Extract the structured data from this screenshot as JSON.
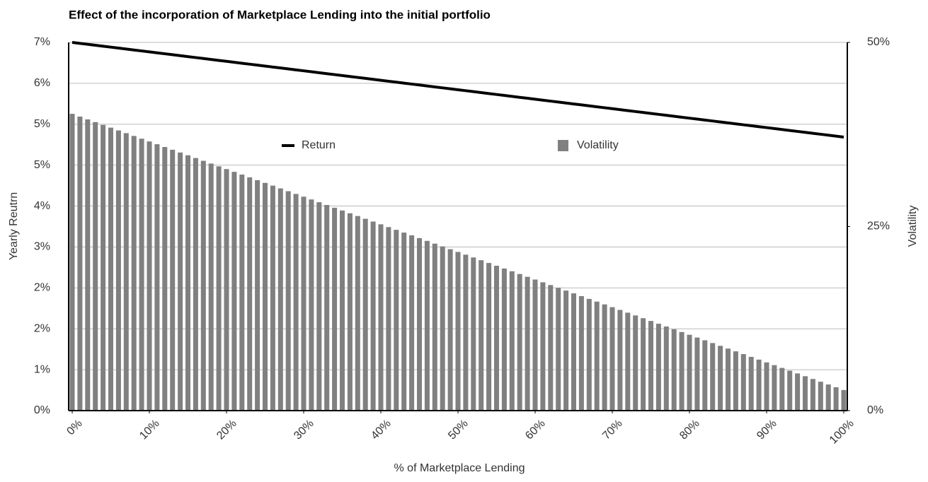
{
  "chart_data": {
    "type": "bar_line",
    "title": "Effect of the incorporation of Marketplace Lending into the initial portfolio",
    "x_label": "% of Marketplace Lending",
    "y_label": "Yearly Reutrn",
    "y2_label": "Volatility",
    "x": [
      0,
      1,
      2,
      3,
      4,
      5,
      6,
      7,
      8,
      9,
      10,
      11,
      12,
      13,
      14,
      15,
      16,
      17,
      18,
      19,
      20,
      21,
      22,
      23,
      24,
      25,
      26,
      27,
      28,
      29,
      30,
      31,
      32,
      33,
      34,
      35,
      36,
      37,
      38,
      39,
      40,
      41,
      42,
      43,
      44,
      45,
      46,
      47,
      48,
      49,
      50,
      51,
      52,
      53,
      54,
      55,
      56,
      57,
      58,
      59,
      60,
      61,
      62,
      63,
      64,
      65,
      66,
      67,
      68,
      69,
      70,
      71,
      72,
      73,
      74,
      75,
      76,
      77,
      78,
      79,
      80,
      81,
      82,
      83,
      84,
      85,
      86,
      87,
      88,
      89,
      90,
      91,
      92,
      93,
      94,
      95,
      96,
      97,
      98,
      99,
      100
    ],
    "series": [
      {
        "name": "Return",
        "type": "line",
        "color": "#000000",
        "values": [
          7,
          6.982,
          6.964,
          6.946,
          6.928,
          6.91,
          6.892,
          6.874,
          6.856,
          6.838,
          6.82,
          6.802,
          6.784,
          6.766,
          6.748,
          6.73,
          6.712,
          6.694,
          6.676,
          6.658,
          6.64,
          6.622,
          6.604,
          6.586,
          6.568,
          6.55,
          6.532,
          6.514,
          6.496,
          6.478,
          6.46,
          6.442,
          6.424,
          6.406,
          6.388,
          6.37,
          6.352,
          6.334,
          6.316,
          6.298,
          6.28,
          6.262,
          6.244,
          6.226,
          6.208,
          6.19,
          6.172,
          6.154,
          6.136,
          6.118,
          6.1,
          6.082,
          6.064,
          6.046,
          6.028,
          6.01,
          5.992,
          5.974,
          5.956,
          5.938,
          5.92,
          5.902,
          5.884,
          5.866,
          5.848,
          5.83,
          5.812,
          5.794,
          5.776,
          5.758,
          5.74,
          5.722,
          5.704,
          5.686,
          5.668,
          5.65,
          5.632,
          5.614,
          5.596,
          5.578,
          5.56,
          5.542,
          5.524,
          5.506,
          5.488,
          5.47,
          5.452,
          5.434,
          5.416,
          5.398,
          5.38,
          5.362,
          5.344,
          5.326,
          5.308,
          5.29,
          5.272,
          5.254,
          5.236,
          5.218,
          5.2
        ]
      },
      {
        "name": "Volatility",
        "type": "bar",
        "axis": "y2",
        "color": "#808080",
        "values": [
          40.3,
          39.925,
          39.55,
          39.175,
          38.8,
          38.425,
          38.05,
          37.675,
          37.3,
          36.925,
          36.55,
          36.175,
          35.8,
          35.425,
          35.05,
          34.675,
          34.3,
          33.925,
          33.55,
          33.175,
          32.8,
          32.425,
          32.05,
          31.675,
          31.3,
          30.925,
          30.55,
          30.175,
          29.8,
          29.425,
          29.05,
          28.675,
          28.3,
          27.925,
          27.55,
          27.175,
          26.8,
          26.425,
          26.05,
          25.675,
          25.3,
          24.925,
          24.55,
          24.175,
          23.8,
          23.425,
          23.05,
          22.675,
          22.3,
          21.925,
          21.55,
          21.175,
          20.8,
          20.425,
          20.05,
          19.675,
          19.3,
          18.925,
          18.55,
          18.175,
          17.8,
          17.425,
          17.05,
          16.675,
          16.3,
          15.925,
          15.55,
          15.175,
          14.8,
          14.425,
          14.05,
          13.675,
          13.3,
          12.925,
          12.55,
          12.175,
          11.8,
          11.425,
          11.05,
          10.675,
          10.3,
          9.925,
          9.55,
          9.175,
          8.8,
          8.425,
          8.05,
          7.675,
          7.3,
          6.925,
          6.55,
          6.175,
          5.8,
          5.425,
          5.05,
          4.675,
          4.3,
          3.925,
          3.55,
          3.175,
          2.8
        ]
      }
    ],
    "xlim": [
      0,
      100
    ],
    "xticks": [
      {
        "value": 0,
        "label": "0%"
      },
      {
        "value": 10,
        "label": "10%"
      },
      {
        "value": 20,
        "label": "20%"
      },
      {
        "value": 30,
        "label": "30%"
      },
      {
        "value": 40,
        "label": "40%"
      },
      {
        "value": 50,
        "label": "50%"
      },
      {
        "value": 60,
        "label": "60%"
      },
      {
        "value": 70,
        "label": "70%"
      },
      {
        "value": 80,
        "label": "80%"
      },
      {
        "value": 90,
        "label": "90%"
      },
      {
        "value": 100,
        "label": "100%"
      }
    ],
    "ylim": [
      0,
      7
    ],
    "yticks": [
      {
        "value": 0,
        "label": "0%"
      },
      {
        "value": 0.778,
        "label": "1%"
      },
      {
        "value": 1.556,
        "label": "2%"
      },
      {
        "value": 2.333,
        "label": "2%"
      },
      {
        "value": 3.111,
        "label": "3%"
      },
      {
        "value": 3.889,
        "label": "4%"
      },
      {
        "value": 4.667,
        "label": "5%"
      },
      {
        "value": 5.444,
        "label": "5%"
      },
      {
        "value": 6.222,
        "label": "6%"
      },
      {
        "value": 7,
        "label": "7%"
      }
    ],
    "y2lim": [
      0,
      50
    ],
    "y2ticks": [
      {
        "value": 0,
        "label": "0%"
      },
      {
        "value": 25,
        "label": "25%"
      },
      {
        "value": 50,
        "label": "50%"
      }
    ],
    "grid": true,
    "legend": "top"
  }
}
